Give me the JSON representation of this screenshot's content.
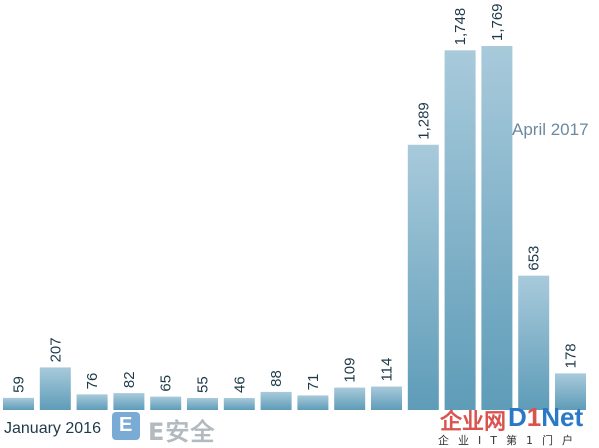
{
  "chart_data": {
    "type": "bar",
    "categories": [
      "",
      "",
      "",
      "",
      "",
      "",
      "",
      "",
      "",
      "",
      "",
      "",
      "",
      "",
      "",
      ""
    ],
    "values": [
      59,
      207,
      76,
      82,
      65,
      55,
      46,
      88,
      71,
      109,
      114,
      1289,
      1748,
      1769,
      653,
      178
    ],
    "value_labels": [
      "59",
      "207",
      "76",
      "82",
      "65",
      "55",
      "46",
      "88",
      "71",
      "109",
      "114",
      "1,289",
      "1,748",
      "1,769",
      "653",
      "178"
    ],
    "xlabel_start": "January 2016",
    "xlabel_end": "April 2017",
    "title": "",
    "xlabel": "",
    "ylabel": "",
    "ylim": [
      0,
      1769
    ],
    "grid": false,
    "bar_color_bottom": "#5e9cb8",
    "bar_color_top": "#a8cadb",
    "label_color": "#1e3a4a"
  },
  "watermarks": {
    "esafe_badge": "E",
    "esafe_text": "E安全",
    "d1net_cn": "企业网",
    "d1net_d": "D",
    "d1net_one": "1",
    "d1net_net": "Net",
    "d1net_sub": "企业IT第1门户"
  }
}
